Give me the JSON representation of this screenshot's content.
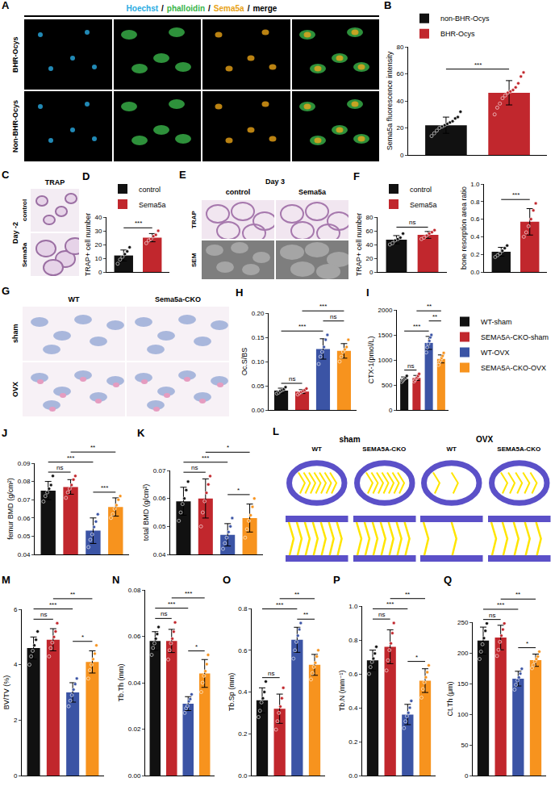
{
  "image_panels": {
    "A": {
      "header": [
        {
          "text": "Hoechst",
          "color": "#29abe2"
        },
        {
          "text": "phalloidin",
          "color": "#39b54a"
        },
        {
          "text": "Sema5a",
          "color": "#e8a317"
        },
        {
          "text": "merge",
          "color": "#000000"
        }
      ],
      "separator": "/",
      "rows": [
        "BHR-Ocys",
        "Non-BHR-Ocys"
      ]
    },
    "C": {
      "title": "TRAP",
      "side_label": "Day -2",
      "rows": [
        "control",
        "Sema5a"
      ]
    },
    "E": {
      "title": "Day 3",
      "columns": [
        "control",
        "Sema5a"
      ],
      "rows": [
        "TRAP",
        "SEM"
      ]
    },
    "G": {
      "columns": [
        "WT",
        "Sema5a-CKO"
      ],
      "rows": [
        "sham",
        "OVX"
      ]
    },
    "L": {
      "groups": [
        "sham",
        "OVX"
      ],
      "columns": [
        "WT",
        "SEMA5A-CKO",
        "WT",
        "SEMA5A-CKO"
      ]
    }
  },
  "chart_data": [
    {
      "panel": "B",
      "type": "bar",
      "y_label": "Sema5a fluorescence intensity",
      "categories": [
        "non-BHR-Ocys",
        "BHR-Ocys"
      ],
      "colors": [
        "#111111",
        "#c1272d"
      ],
      "values": [
        22,
        46
      ],
      "error": [
        6,
        9
      ],
      "points": [
        [
          14,
          16,
          18,
          20,
          21,
          22,
          23,
          24,
          25,
          27,
          28,
          32
        ],
        [
          30,
          35,
          38,
          42,
          44,
          46,
          47,
          48,
          50,
          53,
          58,
          61
        ]
      ],
      "ylim": [
        0,
        80
      ],
      "yticks": [
        0,
        20,
        40,
        60,
        80
      ],
      "grid": false,
      "legend": "top",
      "tick_labels": "y",
      "significance": [
        {
          "groups": [
            0,
            1
          ],
          "label": "***"
        }
      ]
    },
    {
      "panel": "D",
      "type": "bar",
      "y_label": "TRAP+ cell number",
      "categories": [
        "control",
        "Sema5a"
      ],
      "colors": [
        "#111111",
        "#c1272d"
      ],
      "values": [
        12,
        25
      ],
      "error": [
        4,
        3
      ],
      "points": [
        [
          6,
          9,
          11,
          13,
          15,
          18
        ],
        [
          21,
          23,
          24,
          26,
          27,
          30
        ]
      ],
      "ylim": [
        0,
        40
      ],
      "yticks": [
        0,
        10,
        20,
        30,
        40
      ],
      "grid": false,
      "legend": "top",
      "tick_labels": "y",
      "significance": [
        {
          "groups": [
            0,
            1
          ],
          "label": "***"
        }
      ]
    },
    {
      "panel": "F",
      "type": "bar",
      "y_label": "TRAP+ cell number",
      "categories": [
        "control",
        "Sema5a"
      ],
      "colors": [
        "#111111",
        "#c1272d"
      ],
      "values": [
        47,
        54
      ],
      "error": [
        6,
        5
      ],
      "points": [
        [
          40,
          42,
          46,
          48,
          50,
          56
        ],
        [
          48,
          50,
          53,
          56,
          58,
          61
        ]
      ],
      "ylim": [
        0,
        80
      ],
      "yticks": [
        0,
        20,
        40,
        60,
        80
      ],
      "grid": false,
      "legend": "top",
      "tick_labels": "y",
      "significance": [
        {
          "groups": [
            0,
            1
          ],
          "label": "ns"
        }
      ]
    },
    {
      "type": "bar",
      "y_label": "bone resorption area ratio",
      "categories": [
        "control",
        "Sema5a"
      ],
      "colors": [
        "#111111",
        "#c1272d"
      ],
      "values": [
        0.23,
        0.57
      ],
      "error": [
        0.05,
        0.15
      ],
      "points": [
        [
          0.17,
          0.19,
          0.21,
          0.24,
          0.27,
          0.3
        ],
        [
          0.4,
          0.45,
          0.52,
          0.6,
          0.7,
          0.78
        ]
      ],
      "ylim": [
        0,
        1
      ],
      "yticks": [
        {
          "value": 0,
          "label": "0.0"
        },
        0.2,
        0.4,
        0.6,
        0.8,
        {
          "value": 1,
          "label": "1.0"
        }
      ],
      "grid": false,
      "tick_labels": "y",
      "significance": [
        {
          "groups": [
            0,
            1
          ],
          "label": "***"
        }
      ]
    },
    {
      "panel": "H",
      "type": "bar",
      "y_label": "Oc.S/BS",
      "categories": [
        "WT-sham",
        "SEMA5A-CKO-sham",
        "WT-OVX",
        "SEMA5A-CKO-OVX"
      ],
      "colors": [
        "#111111",
        "#c1272d",
        "#3b54a5",
        "#f7931e"
      ],
      "values": [
        0.04,
        0.038,
        0.126,
        0.122
      ],
      "error": [
        0.005,
        0.004,
        0.021,
        0.015
      ],
      "points": [
        [
          0.034,
          0.036,
          0.039,
          0.041,
          0.043,
          0.047
        ],
        [
          0.032,
          0.035,
          0.037,
          0.039,
          0.041,
          0.044
        ],
        [
          0.095,
          0.11,
          0.12,
          0.13,
          0.145,
          0.155
        ],
        [
          0.1,
          0.11,
          0.12,
          0.125,
          0.13,
          0.145
        ]
      ],
      "ylim": [
        0,
        0.2
      ],
      "yticks": [
        {
          "value": 0,
          "label": "0.00"
        },
        0.05,
        {
          "value": 0.1,
          "label": "0.10"
        },
        0.15,
        {
          "value": 0.2,
          "label": "0.20"
        }
      ],
      "grid": false,
      "tick_labels": "y",
      "significance": [
        {
          "groups": [
            0,
            1
          ],
          "label": "ns"
        },
        {
          "groups": [
            0,
            2
          ],
          "label": "***"
        },
        {
          "groups": [
            2,
            3
          ],
          "label": "ns"
        },
        {
          "groups": [
            1,
            3
          ],
          "label": "***"
        }
      ]
    },
    {
      "panel": "I",
      "type": "bar",
      "y_label": "CTX-1(pmol/L)",
      "categories": [
        "WT-sham",
        "SEMA5A-CKO-sham",
        "WT-OVX",
        "SEMA5A-CKO-OVX"
      ],
      "colors": [
        "#111111",
        "#c1272d",
        "#3b54a5",
        "#f7931e"
      ],
      "values": [
        620,
        640,
        1340,
        1020
      ],
      "error": [
        40,
        50,
        130,
        80
      ],
      "points": [
        [
          560,
          590,
          610,
          630,
          650,
          680
        ],
        [
          570,
          600,
          630,
          650,
          680,
          720
        ],
        [
          1150,
          1250,
          1320,
          1380,
          1450,
          1500
        ],
        [
          900,
          960,
          1000,
          1040,
          1080,
          1140
        ]
      ],
      "ylim": [
        0,
        2000
      ],
      "yticks": [
        0,
        500,
        1000,
        1500,
        2000
      ],
      "grid": false,
      "legend": "right",
      "tick_labels": "y",
      "significance": [
        {
          "groups": [
            0,
            1
          ],
          "label": "ns"
        },
        {
          "groups": [
            0,
            2
          ],
          "label": "***"
        },
        {
          "groups": [
            2,
            3
          ],
          "label": "**"
        },
        {
          "groups": [
            1,
            3
          ],
          "label": "**"
        }
      ]
    },
    {
      "panel": "J",
      "type": "bar",
      "y_label": "femur BMD (g/cm²)",
      "categories": [
        "WT-sham",
        "SEMA5A-CKO-sham",
        "WT-OVX",
        "SEMA5A-CKO-OVX"
      ],
      "colors": [
        "#111111",
        "#c1272d",
        "#3b54a5",
        "#f7931e"
      ],
      "values": [
        0.075,
        0.077,
        0.053,
        0.066
      ],
      "error": [
        0.005,
        0.004,
        0.007,
        0.005
      ],
      "points": [
        [
          0.069,
          0.072,
          0.074,
          0.076,
          0.078,
          0.083
        ],
        [
          0.071,
          0.074,
          0.076,
          0.078,
          0.081,
          0.083
        ],
        [
          0.044,
          0.048,
          0.051,
          0.055,
          0.058,
          0.062
        ],
        [
          0.06,
          0.062,
          0.065,
          0.067,
          0.07,
          0.072
        ]
      ],
      "ylim": [
        0.04,
        0.09
      ],
      "yticks": [
        0.04,
        0.05,
        0.06,
        0.07,
        0.08,
        0.09
      ],
      "grid": false,
      "tick_labels": "y",
      "significance": [
        {
          "groups": [
            0,
            1
          ],
          "label": "ns"
        },
        {
          "groups": [
            2,
            3
          ],
          "label": "***"
        },
        {
          "groups": [
            0,
            2
          ],
          "label": "***"
        },
        {
          "groups": [
            1,
            3
          ],
          "label": "**"
        }
      ]
    },
    {
      "panel": "K",
      "type": "bar",
      "y_label": "total BMD (g/cm²)",
      "categories": [
        "WT-sham",
        "SEMA5A-CKO-sham",
        "WT-OVX",
        "SEMA5A-CKO-OVX"
      ],
      "colors": [
        "#111111",
        "#c1272d",
        "#3b54a5",
        "#f7931e"
      ],
      "values": [
        0.059,
        0.06,
        0.047,
        0.053
      ],
      "error": [
        0.005,
        0.007,
        0.004,
        0.005
      ],
      "points": [
        [
          0.052,
          0.055,
          0.058,
          0.06,
          0.063,
          0.066
        ],
        [
          0.05,
          0.055,
          0.059,
          0.062,
          0.065,
          0.068
        ],
        [
          0.042,
          0.044,
          0.046,
          0.048,
          0.05,
          0.053
        ],
        [
          0.046,
          0.049,
          0.052,
          0.054,
          0.057,
          0.06
        ]
      ],
      "ylim": [
        0.04,
        0.07
      ],
      "yticks": [
        0.04,
        0.05,
        0.06,
        0.07
      ],
      "grid": false,
      "tick_labels": "y",
      "significance": [
        {
          "groups": [
            0,
            1
          ],
          "label": "ns"
        },
        {
          "groups": [
            2,
            3
          ],
          "label": "*"
        },
        {
          "groups": [
            0,
            2
          ],
          "label": "***"
        },
        {
          "groups": [
            1,
            3
          ],
          "label": "*"
        }
      ]
    },
    {
      "panel": "M",
      "type": "bar",
      "y_label": "BV/TV (%)",
      "categories": [
        "WT-sham",
        "SEMA5A-CKO-sham",
        "WT-OVX",
        "SEMA5A-CKO-OVX"
      ],
      "colors": [
        "#111111",
        "#c1272d",
        "#3b54a5",
        "#f7931e"
      ],
      "values": [
        4.6,
        4.9,
        3.0,
        4.1
      ],
      "error": [
        0.4,
        0.4,
        0.35,
        0.4
      ],
      "points": [
        [
          4.0,
          4.3,
          4.5,
          4.7,
          4.9,
          5.2
        ],
        [
          4.3,
          4.6,
          4.8,
          5.0,
          5.2,
          5.5
        ],
        [
          2.5,
          2.7,
          2.9,
          3.1,
          3.3,
          3.5
        ],
        [
          3.5,
          3.8,
          4.0,
          4.2,
          4.4,
          4.7
        ]
      ],
      "ylim": [
        0,
        6
      ],
      "yticks": [
        0,
        2,
        4,
        6
      ],
      "grid": false,
      "tick_labels": "y",
      "significance": [
        {
          "groups": [
            0,
            1
          ],
          "label": "ns"
        },
        {
          "groups": [
            2,
            3
          ],
          "label": "*"
        },
        {
          "groups": [
            0,
            2
          ],
          "label": "***"
        },
        {
          "groups": [
            1,
            3
          ],
          "label": "**"
        }
      ]
    },
    {
      "panel": "N",
      "type": "bar",
      "y_label": "Tb.Th (mm)",
      "categories": [
        "WT-sham",
        "SEMA5A-CKO-sham",
        "WT-OVX",
        "SEMA5A-CKO-OVX"
      ],
      "colors": [
        "#111111",
        "#c1272d",
        "#3b54a5",
        "#f7931e"
      ],
      "values": [
        0.058,
        0.058,
        0.031,
        0.044
      ],
      "error": [
        0.004,
        0.005,
        0.003,
        0.006
      ],
      "points": [
        [
          0.052,
          0.055,
          0.057,
          0.059,
          0.061,
          0.064
        ],
        [
          0.05,
          0.054,
          0.057,
          0.059,
          0.062,
          0.066
        ],
        [
          0.027,
          0.029,
          0.03,
          0.032,
          0.033,
          0.035
        ],
        [
          0.036,
          0.04,
          0.043,
          0.045,
          0.048,
          0.052
        ]
      ],
      "ylim": [
        0,
        0.08
      ],
      "yticks": [
        {
          "value": 0,
          "label": "0.00"
        },
        0.02,
        0.04,
        0.06,
        0.08
      ],
      "grid": false,
      "tick_labels": "y",
      "significance": [
        {
          "groups": [
            0,
            1
          ],
          "label": "ns"
        },
        {
          "groups": [
            2,
            3
          ],
          "label": "*"
        },
        {
          "groups": [
            0,
            2
          ],
          "label": "***"
        },
        {
          "groups": [
            1,
            3
          ],
          "label": "***"
        }
      ]
    },
    {
      "panel": "O",
      "type": "bar",
      "y_label": "Tb.Sp (mm)",
      "categories": [
        "WT-sham",
        "SEMA5A-CKO-sham",
        "WT-OVX",
        "SEMA5A-CKO-OVX"
      ],
      "colors": [
        "#111111",
        "#c1272d",
        "#3b54a5",
        "#f7931e"
      ],
      "values": [
        0.36,
        0.32,
        0.65,
        0.53
      ],
      "error": [
        0.06,
        0.07,
        0.06,
        0.05
      ],
      "points": [
        [
          0.28,
          0.31,
          0.35,
          0.37,
          0.4,
          0.45
        ],
        [
          0.22,
          0.26,
          0.3,
          0.33,
          0.37,
          0.42
        ],
        [
          0.56,
          0.6,
          0.64,
          0.67,
          0.7,
          0.73
        ],
        [
          0.46,
          0.49,
          0.52,
          0.54,
          0.57,
          0.6
        ]
      ],
      "ylim": [
        0,
        0.8
      ],
      "yticks": [
        {
          "value": 0,
          "label": "0.0"
        },
        0.2,
        0.4,
        0.6,
        0.8
      ],
      "grid": false,
      "tick_labels": "y",
      "significance": [
        {
          "groups": [
            0,
            1
          ],
          "label": "ns"
        },
        {
          "groups": [
            2,
            3
          ],
          "label": "**"
        },
        {
          "groups": [
            0,
            2
          ],
          "label": "***"
        },
        {
          "groups": [
            1,
            3
          ],
          "label": "**"
        }
      ]
    },
    {
      "panel": "P",
      "type": "bar",
      "y_label": "Tb.N (mm⁻¹)",
      "categories": [
        "WT-sham",
        "SEMA5A-CKO-sham",
        "WT-OVX",
        "SEMA5A-CKO-OVX"
      ],
      "colors": [
        "#111111",
        "#c1272d",
        "#3b54a5",
        "#f7931e"
      ],
      "values": [
        0.68,
        0.76,
        0.36,
        0.56
      ],
      "error": [
        0.06,
        0.1,
        0.06,
        0.07
      ],
      "points": [
        [
          0.6,
          0.64,
          0.67,
          0.69,
          0.72,
          0.76
        ],
        [
          0.62,
          0.68,
          0.74,
          0.78,
          0.84,
          0.9
        ],
        [
          0.28,
          0.32,
          0.35,
          0.37,
          0.4,
          0.44
        ],
        [
          0.46,
          0.51,
          0.55,
          0.58,
          0.61,
          0.65
        ]
      ],
      "ylim": [
        0,
        1
      ],
      "yticks": [
        {
          "value": 0,
          "label": "0.0"
        },
        0.2,
        0.4,
        0.6,
        0.8,
        {
          "value": 1,
          "label": "1.0"
        }
      ],
      "grid": false,
      "tick_labels": "y",
      "significance": [
        {
          "groups": [
            0,
            1
          ],
          "label": "ns"
        },
        {
          "groups": [
            2,
            3
          ],
          "label": "*"
        },
        {
          "groups": [
            0,
            2
          ],
          "label": "***"
        },
        {
          "groups": [
            1,
            3
          ],
          "label": "**"
        }
      ]
    },
    {
      "panel": "Q",
      "type": "bar",
      "y_label": "Ct.Th (μm)",
      "categories": [
        "WT-sham",
        "SEMA5A-CKO-sham",
        "WT-OVX",
        "SEMA5A-CKO-OVX"
      ],
      "colors": [
        "#111111",
        "#c1272d",
        "#3b54a5",
        "#f7931e"
      ],
      "values": [
        220,
        225,
        158,
        188
      ],
      "error": [
        22,
        20,
        12,
        10
      ],
      "points": [
        [
          190,
          202,
          214,
          224,
          236,
          248
        ],
        [
          195,
          205,
          218,
          228,
          238,
          248
        ],
        [
          140,
          148,
          155,
          160,
          166,
          174
        ],
        [
          175,
          180,
          186,
          190,
          194,
          202
        ]
      ],
      "ylim": [
        0,
        250
      ],
      "yticks": [
        0,
        50,
        100,
        150,
        200,
        250
      ],
      "grid": false,
      "tick_labels": "y",
      "significance": [
        {
          "groups": [
            0,
            1
          ],
          "label": "ns"
        },
        {
          "groups": [
            2,
            3
          ],
          "label": "*"
        },
        {
          "groups": [
            0,
            2
          ],
          "label": "***"
        },
        {
          "groups": [
            1,
            3
          ],
          "label": "**"
        }
      ]
    }
  ]
}
